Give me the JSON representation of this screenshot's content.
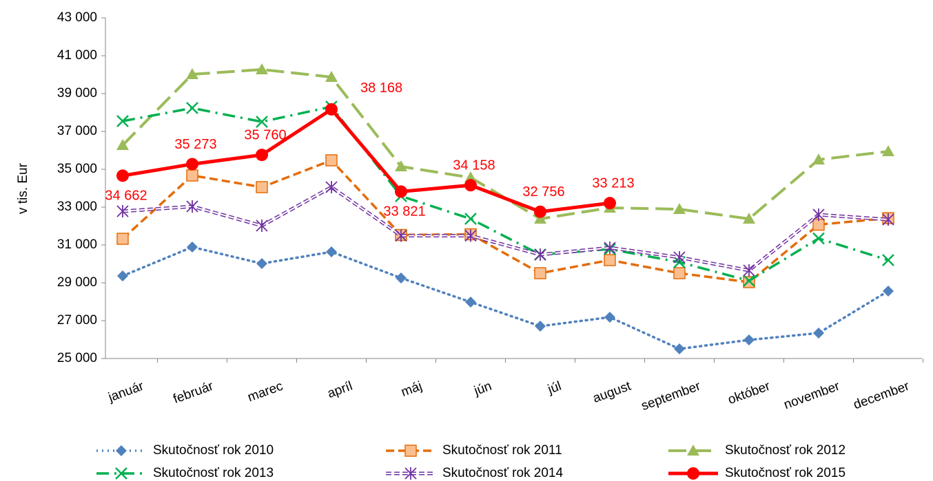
{
  "chart_data": {
    "type": "line",
    "y_label": "v tis. Eur",
    "categories": [
      "január",
      "február",
      "marec",
      "apríl",
      "máj",
      "jún",
      "júl",
      "august",
      "september",
      "október",
      "november",
      "december"
    ],
    "ylim": [
      25000,
      43000
    ],
    "yticks": [
      {
        "value": 25000,
        "label": "25 000"
      },
      {
        "value": 27000,
        "label": "27 000"
      },
      {
        "value": 29000,
        "label": "29 000"
      },
      {
        "value": 31000,
        "label": "31 000"
      },
      {
        "value": 33000,
        "label": "33 000"
      },
      {
        "value": 35000,
        "label": "35 000"
      },
      {
        "value": 37000,
        "label": "37 000"
      },
      {
        "value": 39000,
        "label": "39 000"
      },
      {
        "value": 41000,
        "label": "41 000"
      },
      {
        "value": 43000,
        "label": "43 000"
      }
    ],
    "series": [
      {
        "name": "Skutočnosť rok 2010",
        "color": "#4f81bd",
        "marker": "diamond",
        "dash": "dot",
        "values": [
          29364,
          30891,
          30018,
          30636,
          29255,
          27982,
          26709,
          27182,
          25509,
          25982,
          26345,
          28564
        ]
      },
      {
        "name": "Skutočnosť rok 2011",
        "color": "#e46c0a",
        "marker": "square",
        "dash": "dash",
        "values": [
          31327,
          34673,
          34055,
          35473,
          31527,
          31564,
          29509,
          30200,
          29509,
          29036,
          32073,
          32418
        ]
      },
      {
        "name": "Skutočnosť rok 2012",
        "color": "#9bbb59",
        "marker": "triangle",
        "dash": "longdash",
        "values": [
          36273,
          40018,
          40273,
          39873,
          35145,
          34564,
          32382,
          32964,
          32891,
          32382,
          35509,
          35945
        ]
      },
      {
        "name": "Skutočnosť rok 2013",
        "color": "#00b050",
        "marker": "x",
        "dash": "dashdot",
        "values": [
          37545,
          38236,
          37509,
          38309,
          33582,
          32382,
          30491,
          30782,
          30091,
          29109,
          31345,
          30200
        ]
      },
      {
        "name": "Skutočnosť rok 2014",
        "color": "#7030a0",
        "marker": "star",
        "dash": "double",
        "values": [
          32782,
          33036,
          32018,
          34055,
          31491,
          31491,
          30491,
          30855,
          30345,
          29655,
          32600,
          32345
        ]
      },
      {
        "name": "Skutočnosť rok 2015",
        "color": "#ff0000",
        "marker": "circle",
        "dash": "solid",
        "values": [
          34662,
          35273,
          35760,
          38168,
          33821,
          34158,
          32756,
          33213,
          null,
          null,
          null,
          null
        ],
        "value_labels": [
          "34 662",
          "35 273",
          "35 760",
          "38 168",
          "33 821",
          "34 158",
          "32 756",
          "33 213",
          null,
          null,
          null,
          null
        ]
      }
    ]
  }
}
